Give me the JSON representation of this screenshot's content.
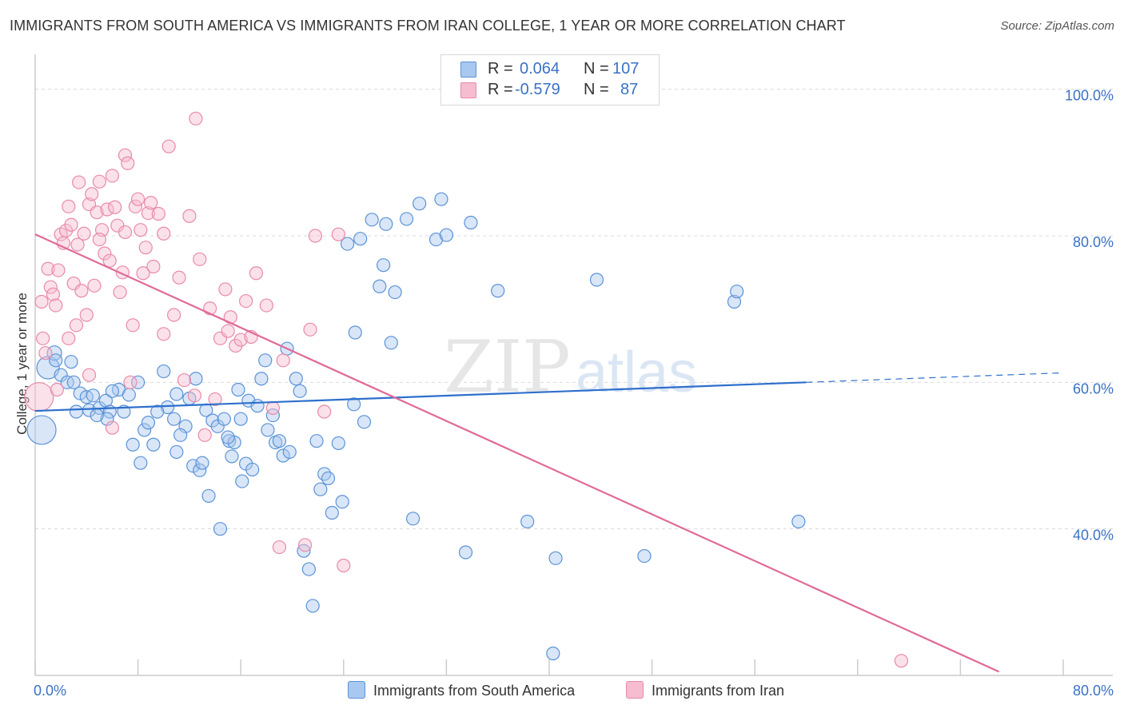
{
  "title": "IMMIGRANTS FROM SOUTH AMERICA VS IMMIGRANTS FROM IRAN COLLEGE, 1 YEAR OR MORE CORRELATION CHART",
  "source": "Source: ZipAtlas.com",
  "watermark": {
    "part1": "ZIP",
    "part2": "atlas"
  },
  "legend": {
    "r_label": "R =",
    "n_label": "N =",
    "rows": [
      {
        "r": "0.064",
        "n": "107"
      },
      {
        "r": "-0.579",
        "n": "87"
      }
    ]
  },
  "colors": {
    "blue_fill": "#a9c8f0",
    "blue_stroke": "#5b92d6",
    "blue_line": "#2e6fcc",
    "pink_fill": "#f6bcd0",
    "pink_stroke": "#e88aa8",
    "pink_line": "#e06a96",
    "axis_label": "#3a72c4",
    "grid": "#d9d9d9"
  },
  "chart_data": {
    "type": "scatter",
    "xlabel": "",
    "ylabel": "College, 1 year or more",
    "xlim": [
      0,
      80
    ],
    "ylim": [
      20,
      104
    ],
    "x_tick_labels": [
      "0.0%",
      "80.0%"
    ],
    "y_tick_labels": [
      "40.0%",
      "60.0%",
      "80.0%",
      "100.0%"
    ],
    "y_ticks": [
      40,
      60,
      80,
      100
    ],
    "x_minor_ticks": [
      0,
      8,
      16,
      24,
      32,
      40,
      48,
      56,
      64,
      72,
      80
    ],
    "grid": true,
    "series": [
      {
        "name": "Immigrants from South America",
        "color": "#5b92d6",
        "stats": {
          "r": 0.064,
          "n": 107
        },
        "trend": {
          "x0": 0,
          "y0": 56.1,
          "x1": 60,
          "y1": 60.0,
          "dash_to_x": 80,
          "dash_to_y": 61.3
        },
        "points": [
          [
            0.5,
            53.5,
            18
          ],
          [
            1.0,
            62.0,
            14
          ],
          [
            1.5,
            64.0,
            9
          ],
          [
            1.6,
            63.0,
            8
          ],
          [
            2.0,
            61.0,
            8
          ],
          [
            2.8,
            62.8,
            8
          ],
          [
            2.5,
            60.0,
            8
          ],
          [
            3.0,
            60.0,
            8
          ],
          [
            3.5,
            58.5,
            8
          ],
          [
            4.0,
            58.0,
            8
          ],
          [
            4.5,
            58.2,
            8
          ],
          [
            4.2,
            56.2,
            8
          ],
          [
            5.0,
            56.5,
            8
          ],
          [
            5.5,
            57.5,
            8
          ],
          [
            5.8,
            56.0,
            8
          ],
          [
            5.6,
            55.0,
            8
          ],
          [
            6.5,
            59.0,
            8
          ],
          [
            6.9,
            56.0,
            8
          ],
          [
            7.3,
            58.3,
            8
          ],
          [
            8.0,
            60.0,
            8
          ],
          [
            8.5,
            53.5,
            8
          ],
          [
            8.8,
            54.5,
            8
          ],
          [
            7.6,
            51.5,
            8
          ],
          [
            9.2,
            51.5,
            8
          ],
          [
            8.2,
            49.0,
            8
          ],
          [
            10.0,
            61.5,
            8
          ],
          [
            10.3,
            56.6,
            8
          ],
          [
            10.8,
            55.0,
            8
          ],
          [
            11.0,
            58.4,
            8
          ],
          [
            11.7,
            54.0,
            8
          ],
          [
            11.3,
            52.8,
            8
          ],
          [
            12.0,
            57.8,
            8
          ],
          [
            12.3,
            48.6,
            8
          ],
          [
            12.5,
            60.5,
            8
          ],
          [
            12.8,
            48.0,
            8
          ],
          [
            13.3,
            56.2,
            8
          ],
          [
            13.5,
            44.5,
            8
          ],
          [
            13.8,
            54.8,
            8
          ],
          [
            14.2,
            54.0,
            8
          ],
          [
            14.4,
            40.0,
            8
          ],
          [
            14.7,
            55.0,
            8
          ],
          [
            15.1,
            52.0,
            8
          ],
          [
            15.3,
            49.9,
            8
          ],
          [
            15.5,
            51.8,
            8
          ],
          [
            15.8,
            59.0,
            8
          ],
          [
            16.1,
            46.5,
            8
          ],
          [
            16.4,
            48.9,
            8
          ],
          [
            16.6,
            57.5,
            8
          ],
          [
            16.9,
            48.1,
            8
          ],
          [
            17.3,
            56.8,
            8
          ],
          [
            17.6,
            60.5,
            8
          ],
          [
            17.9,
            63.0,
            8
          ],
          [
            18.1,
            53.5,
            8
          ],
          [
            18.5,
            55.5,
            8
          ],
          [
            18.7,
            51.8,
            8
          ],
          [
            19.0,
            52.0,
            8
          ],
          [
            19.3,
            50.0,
            8
          ],
          [
            19.6,
            64.6,
            8
          ],
          [
            20.3,
            60.5,
            8
          ],
          [
            20.6,
            58.8,
            8
          ],
          [
            20.9,
            37.0,
            8
          ],
          [
            21.3,
            34.5,
            8
          ],
          [
            21.6,
            29.5,
            8
          ],
          [
            21.9,
            52.0,
            8
          ],
          [
            22.2,
            45.4,
            8
          ],
          [
            22.5,
            47.5,
            8
          ],
          [
            22.8,
            46.9,
            8
          ],
          [
            23.1,
            42.2,
            8
          ],
          [
            23.6,
            51.7,
            8
          ],
          [
            23.9,
            43.7,
            8
          ],
          [
            24.3,
            78.9,
            8
          ],
          [
            24.8,
            57.0,
            8
          ],
          [
            24.9,
            66.8,
            8
          ],
          [
            25.3,
            79.6,
            8
          ],
          [
            25.6,
            54.6,
            8
          ],
          [
            26.2,
            82.2,
            8
          ],
          [
            26.8,
            73.1,
            8
          ],
          [
            27.1,
            76.0,
            8
          ],
          [
            27.3,
            81.6,
            8
          ],
          [
            27.7,
            65.4,
            8
          ],
          [
            28.0,
            72.3,
            8
          ],
          [
            28.9,
            82.3,
            8
          ],
          [
            29.4,
            41.4,
            8
          ],
          [
            29.9,
            84.4,
            8
          ],
          [
            31.2,
            79.5,
            8
          ],
          [
            31.6,
            85.0,
            8
          ],
          [
            32.0,
            80.1,
            8
          ],
          [
            33.5,
            36.8,
            8
          ],
          [
            33.9,
            81.8,
            8
          ],
          [
            36.0,
            72.5,
            8
          ],
          [
            38.3,
            41.0,
            8
          ],
          [
            40.5,
            36.0,
            8
          ],
          [
            40.3,
            23.0,
            8
          ],
          [
            43.7,
            74.0,
            8
          ],
          [
            47.4,
            36.3,
            8
          ],
          [
            54.4,
            71.0,
            8
          ],
          [
            54.6,
            72.4,
            8
          ],
          [
            59.4,
            41.0,
            8
          ],
          [
            15.0,
            52.5,
            8
          ],
          [
            9.5,
            56.0,
            8
          ],
          [
            6.0,
            58.8,
            8
          ],
          [
            3.2,
            56.0,
            8
          ],
          [
            4.8,
            55.5,
            8
          ],
          [
            19.8,
            50.5,
            8
          ],
          [
            13.0,
            49.0,
            8
          ],
          [
            11.0,
            50.5,
            8
          ],
          [
            16.0,
            55.0,
            8
          ]
        ]
      },
      {
        "name": "Immigrants from Iran",
        "color": "#e88aa8",
        "stats": {
          "r": -0.579,
          "n": 87
        },
        "trend": {
          "x0": 0,
          "y0": 80.2,
          "x1": 75,
          "y1": 20.5
        },
        "points": [
          [
            0.3,
            58.0,
            18
          ],
          [
            0.5,
            71.0,
            8
          ],
          [
            0.6,
            66.0,
            8
          ],
          [
            0.8,
            64.0,
            8
          ],
          [
            1.0,
            75.5,
            8
          ],
          [
            1.2,
            73.0,
            8
          ],
          [
            1.4,
            72.0,
            8
          ],
          [
            1.6,
            70.5,
            8
          ],
          [
            1.7,
            59.0,
            8
          ],
          [
            2.0,
            80.2,
            8
          ],
          [
            2.2,
            79.0,
            8
          ],
          [
            2.4,
            80.7,
            8
          ],
          [
            2.6,
            84.0,
            8
          ],
          [
            2.8,
            81.5,
            8
          ],
          [
            3.0,
            73.5,
            8
          ],
          [
            3.2,
            67.8,
            8
          ],
          [
            3.4,
            87.3,
            8
          ],
          [
            3.6,
            72.5,
            8
          ],
          [
            3.8,
            80.3,
            8
          ],
          [
            4.0,
            69.2,
            8
          ],
          [
            4.2,
            84.3,
            8
          ],
          [
            4.4,
            85.7,
            8
          ],
          [
            4.6,
            73.2,
            8
          ],
          [
            4.8,
            83.2,
            8
          ],
          [
            5.0,
            87.4,
            8
          ],
          [
            5.2,
            80.8,
            8
          ],
          [
            5.4,
            77.6,
            8
          ],
          [
            5.6,
            83.6,
            8
          ],
          [
            5.8,
            76.6,
            8
          ],
          [
            6.0,
            88.2,
            8
          ],
          [
            6.2,
            83.9,
            8
          ],
          [
            6.4,
            81.4,
            8
          ],
          [
            6.6,
            72.3,
            8
          ],
          [
            6.8,
            75.0,
            8
          ],
          [
            7.0,
            91.0,
            8
          ],
          [
            7.2,
            89.9,
            8
          ],
          [
            7.4,
            60.0,
            8
          ],
          [
            7.6,
            67.8,
            8
          ],
          [
            7.8,
            84.0,
            8
          ],
          [
            8.0,
            85.0,
            8
          ],
          [
            8.2,
            80.8,
            8
          ],
          [
            8.4,
            74.9,
            8
          ],
          [
            8.6,
            78.4,
            8
          ],
          [
            8.8,
            83.1,
            8
          ],
          [
            9.2,
            75.8,
            8
          ],
          [
            9.6,
            83.0,
            8
          ],
          [
            10.0,
            80.3,
            8
          ],
          [
            10.4,
            92.2,
            8
          ],
          [
            10.8,
            69.2,
            8
          ],
          [
            11.2,
            74.3,
            8
          ],
          [
            11.6,
            60.3,
            8
          ],
          [
            12.0,
            82.7,
            8
          ],
          [
            12.4,
            58.2,
            8
          ],
          [
            12.8,
            76.8,
            8
          ],
          [
            13.2,
            52.8,
            8
          ],
          [
            13.6,
            70.1,
            8
          ],
          [
            14.0,
            57.7,
            8
          ],
          [
            14.4,
            66.0,
            8
          ],
          [
            14.8,
            72.7,
            8
          ],
          [
            15.2,
            68.9,
            8
          ],
          [
            15.6,
            65.0,
            8
          ],
          [
            16.0,
            65.8,
            8
          ],
          [
            16.4,
            71.1,
            8
          ],
          [
            16.8,
            66.2,
            8
          ],
          [
            17.2,
            74.9,
            8
          ],
          [
            18.5,
            56.5,
            8
          ],
          [
            19.0,
            37.5,
            8
          ],
          [
            19.3,
            63.0,
            8
          ],
          [
            21.0,
            37.8,
            8
          ],
          [
            21.4,
            67.2,
            8
          ],
          [
            21.8,
            80.0,
            8
          ],
          [
            22.5,
            56.0,
            8
          ],
          [
            24.0,
            35.0,
            8
          ],
          [
            23.6,
            80.2,
            8
          ],
          [
            12.5,
            96.0,
            8
          ],
          [
            5.0,
            79.5,
            8
          ],
          [
            3.3,
            78.8,
            8
          ],
          [
            7.0,
            80.5,
            8
          ],
          [
            9.0,
            84.5,
            8
          ],
          [
            1.8,
            75.3,
            8
          ],
          [
            2.6,
            66.0,
            8
          ],
          [
            4.2,
            61.0,
            8
          ],
          [
            6.0,
            53.8,
            8
          ],
          [
            10.0,
            66.6,
            8
          ],
          [
            15.0,
            67.0,
            8
          ],
          [
            18.0,
            70.5,
            8
          ],
          [
            67.4,
            22.0,
            8
          ]
        ]
      }
    ]
  }
}
